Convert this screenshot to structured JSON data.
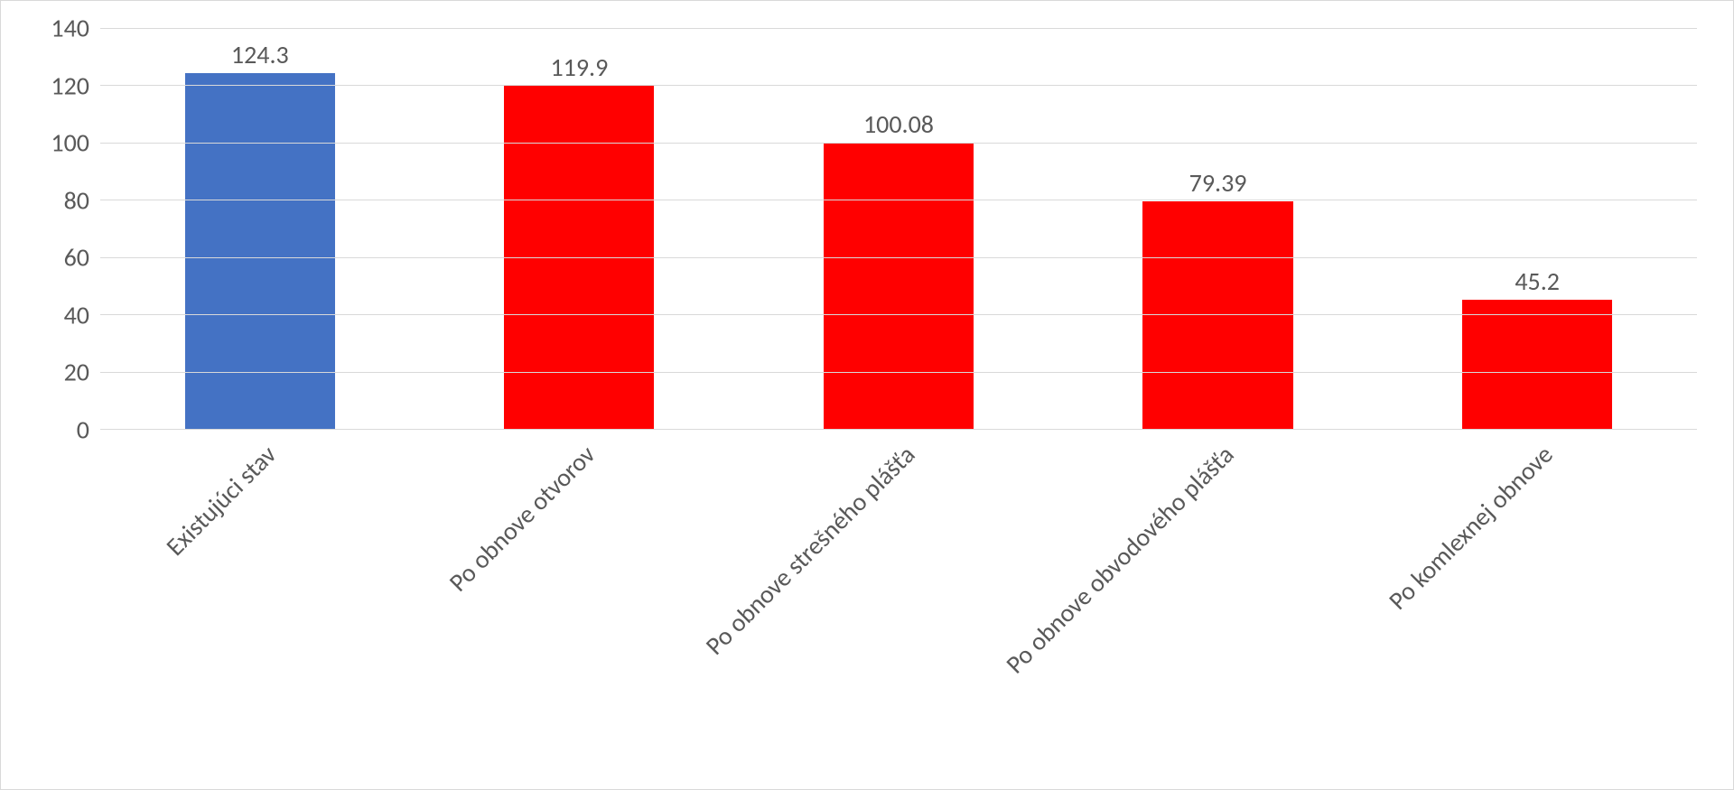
{
  "chart": {
    "type": "bar",
    "categories": [
      "Existujúci stav",
      "Po obnove otvorov",
      "Po obnove strešného plášťa",
      "Po obnove obvodového plášťa",
      "Po komlexnej obnove"
    ],
    "values": [
      124.3,
      119.9,
      100.08,
      79.39,
      45.2
    ],
    "value_labels": [
      "124.3",
      "119.9",
      "100.08",
      "79.39",
      "45.2"
    ],
    "bar_colors": [
      "#4472c4",
      "#ff0000",
      "#ff0000",
      "#ff0000",
      "#ff0000"
    ],
    "ylim": [
      0,
      140
    ],
    "ytick_step": 20,
    "yticks": [
      0,
      20,
      40,
      60,
      80,
      100,
      120,
      140
    ],
    "background_color": "#ffffff",
    "grid_color": "#d9d9d9",
    "border_color": "#d9d9d9",
    "text_color": "#595959",
    "bar_width": 0.47,
    "label_fontsize": 28,
    "tick_fontsize": 28,
    "font_family": "Calibri"
  }
}
